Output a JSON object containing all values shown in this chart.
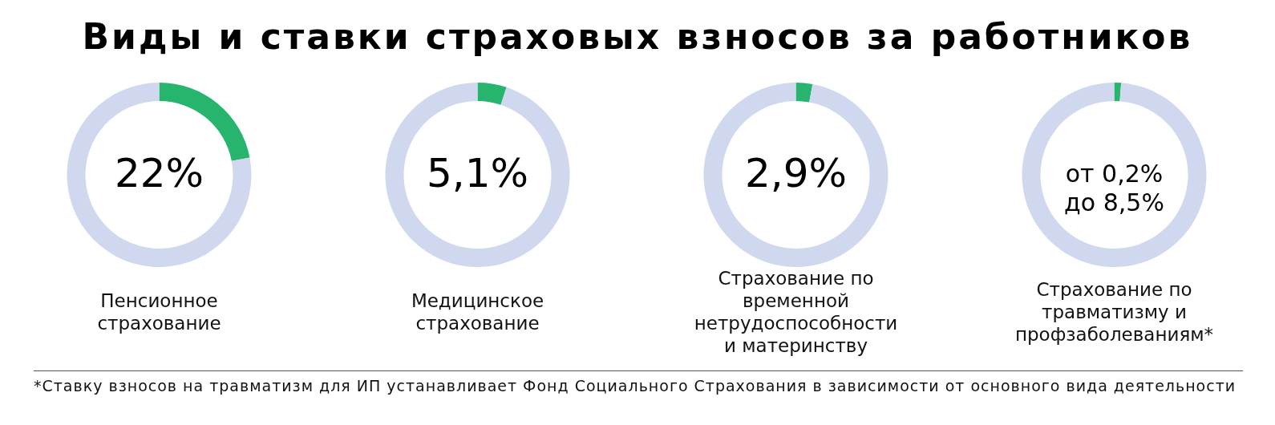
{
  "chart_data": [
    {
      "type": "donut",
      "title": "Виды и ставки страховых взносов за работников",
      "xlabel": "Пенсионное\nстрахование",
      "categories": [
        null,
        null
      ],
      "values": [
        22,
        78
      ],
      "colors": [
        "#27b56e",
        "#cfd8ef"
      ],
      "value_labels": [
        "22%",
        null
      ]
    },
    {
      "type": "donut",
      "xlabel": "Медицинское\nстрахование",
      "categories": [
        null,
        null
      ],
      "values": [
        5.1,
        94.9
      ],
      "colors": [
        "#27b56e",
        "#cfd8ef"
      ],
      "value_labels": [
        "5,1%",
        null
      ]
    },
    {
      "type": "donut",
      "xlabel": "Страхование по\nвременной\nнетрудоспособности\nи материнству",
      "categories": [
        null,
        null
      ],
      "values": [
        2.9,
        97.1
      ],
      "colors": [
        "#27b56e",
        "#cfd8ef"
      ],
      "value_labels": [
        "2,9%",
        null
      ]
    },
    {
      "type": "donut",
      "xlabel": "Страхование по\nтравматизму и\nпрофзаболеваниям*",
      "categories": [
        null,
        null
      ],
      "values": [
        1.2,
        98.8
      ],
      "colors": [
        "#27b56e",
        "#cfd8ef"
      ],
      "annotations": [
        "от 0,2%\nдо 8,5%"
      ]
    },
    {
      "type": "other",
      "annotations": [
        "*Ставку взносов на травматизм для ИП устанавливает Фонд Социального Страхования в зависимости от основного вида деятельности"
      ]
    }
  ]
}
